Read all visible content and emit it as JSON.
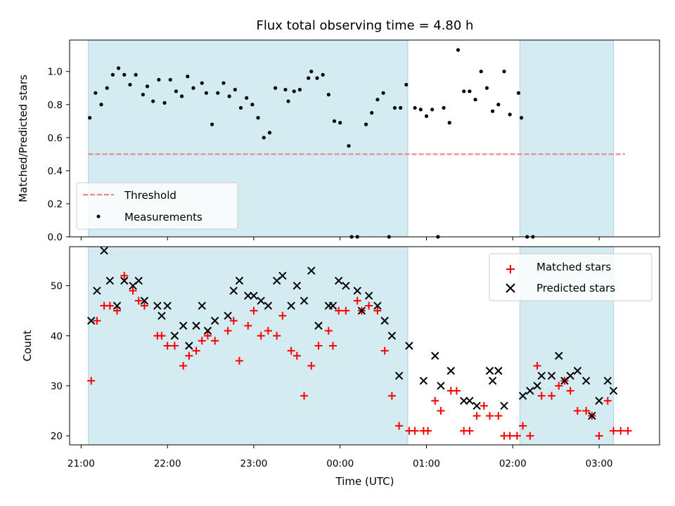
{
  "chart_data": [
    {
      "type": "scatter",
      "title": "Flux total observing time = 4.80 h",
      "xlabel": "",
      "ylabel": "Matched/Predicted stars",
      "x_ticks": [
        "21:00",
        "22:00",
        "23:00",
        "00:00",
        "01:00",
        "02:00",
        "03:00"
      ],
      "y_ticks": [
        "0.0",
        "0.2",
        "0.4",
        "0.6",
        "0.8",
        "1.0"
      ],
      "xlim": [
        "20:52",
        "03:42"
      ],
      "ylim": [
        0,
        1.19
      ],
      "grid": false,
      "legend_position": "lower-left",
      "shaded_spans": [
        [
          "21:05",
          "00:47"
        ],
        [
          "02:05",
          "03:10"
        ]
      ],
      "threshold": {
        "name": "Threshold",
        "value": 0.5,
        "x_range": [
          "21:05",
          "03:18"
        ],
        "color": "#f08080",
        "style": "dashed"
      },
      "series": [
        {
          "name": "Measurements",
          "color": "#000000",
          "marker": "dot",
          "points": [
            [
              "21:06",
              0.72
            ],
            [
              "21:10",
              0.87
            ],
            [
              "21:14",
              0.8
            ],
            [
              "21:18",
              0.9
            ],
            [
              "21:22",
              0.98
            ],
            [
              "21:26",
              1.02
            ],
            [
              "21:30",
              0.98
            ],
            [
              "21:34",
              0.92
            ],
            [
              "21:38",
              0.98
            ],
            [
              "21:43",
              0.86
            ],
            [
              "21:46",
              0.91
            ],
            [
              "21:50",
              0.82
            ],
            [
              "21:54",
              0.95
            ],
            [
              "21:58",
              0.81
            ],
            [
              "22:02",
              0.95
            ],
            [
              "22:06",
              0.88
            ],
            [
              "22:10",
              0.85
            ],
            [
              "22:14",
              0.97
            ],
            [
              "22:18",
              0.9
            ],
            [
              "22:24",
              0.93
            ],
            [
              "22:27",
              0.87
            ],
            [
              "22:31",
              0.68
            ],
            [
              "22:35",
              0.87
            ],
            [
              "22:39",
              0.93
            ],
            [
              "22:43",
              0.85
            ],
            [
              "22:47",
              0.89
            ],
            [
              "22:51",
              0.78
            ],
            [
              "22:55",
              0.84
            ],
            [
              "22:59",
              0.8
            ],
            [
              "23:03",
              0.72
            ],
            [
              "23:07",
              0.6
            ],
            [
              "23:11",
              0.63
            ],
            [
              "23:15",
              0.9
            ],
            [
              "23:22",
              0.89
            ],
            [
              "23:24",
              0.82
            ],
            [
              "23:28",
              0.88
            ],
            [
              "23:32",
              0.89
            ],
            [
              "23:38",
              0.96
            ],
            [
              "23:40",
              1.0
            ],
            [
              "23:44",
              0.96
            ],
            [
              "23:48",
              0.98
            ],
            [
              "23:52",
              0.86
            ],
            [
              "23:56",
              0.7
            ],
            [
              "00:00",
              0.69
            ],
            [
              "00:06",
              0.55
            ],
            [
              "00:08",
              0.0
            ],
            [
              "00:12",
              0.0
            ],
            [
              "00:18",
              0.68
            ],
            [
              "00:22",
              0.75
            ],
            [
              "00:26",
              0.83
            ],
            [
              "00:30",
              0.87
            ],
            [
              "00:34",
              0.0
            ],
            [
              "00:38",
              0.78
            ],
            [
              "00:42",
              0.78
            ],
            [
              "00:46",
              0.92
            ],
            [
              "00:52",
              0.78
            ],
            [
              "00:56",
              0.77
            ],
            [
              "01:00",
              0.73
            ],
            [
              "01:04",
              0.77
            ],
            [
              "01:08",
              0.0
            ],
            [
              "01:12",
              0.78
            ],
            [
              "01:16",
              0.69
            ],
            [
              "01:22",
              1.13
            ],
            [
              "01:26",
              0.88
            ],
            [
              "01:30",
              0.88
            ],
            [
              "01:34",
              0.83
            ],
            [
              "01:38",
              1.0
            ],
            [
              "01:42",
              0.9
            ],
            [
              "01:46",
              0.76
            ],
            [
              "01:50",
              0.8
            ],
            [
              "01:54",
              1.0
            ],
            [
              "01:58",
              0.74
            ],
            [
              "02:04",
              0.87
            ],
            [
              "02:06",
              0.72
            ],
            [
              "02:10",
              0.0
            ],
            [
              "02:14",
              0.0
            ]
          ]
        }
      ]
    },
    {
      "type": "scatter",
      "title": "",
      "xlabel": "Time (UTC)",
      "ylabel": "Count",
      "x_ticks": [
        "21:00",
        "22:00",
        "23:00",
        "00:00",
        "01:00",
        "02:00",
        "03:00"
      ],
      "y_ticks": [
        "20",
        "30",
        "40",
        "50"
      ],
      "xlim": [
        "20:52",
        "03:42"
      ],
      "ylim": [
        18.2,
        57.8
      ],
      "grid": false,
      "legend_position": "upper-right",
      "shaded_spans": [
        [
          "21:05",
          "00:47"
        ],
        [
          "02:05",
          "03:10"
        ]
      ],
      "series": [
        {
          "name": "Matched stars",
          "color": "#ff0000",
          "marker": "plus",
          "points": [
            [
              "21:07",
              31
            ],
            [
              "21:11",
              43
            ],
            [
              "21:16",
              46
            ],
            [
              "21:20",
              46
            ],
            [
              "21:25",
              45
            ],
            [
              "21:30",
              52
            ],
            [
              "21:36",
              49
            ],
            [
              "21:40",
              47
            ],
            [
              "21:44",
              46
            ],
            [
              "21:53",
              40
            ],
            [
              "21:56",
              40
            ],
            [
              "22:00",
              38
            ],
            [
              "22:05",
              38
            ],
            [
              "22:11",
              34
            ],
            [
              "22:15",
              36
            ],
            [
              "22:20",
              37
            ],
            [
              "22:24",
              39
            ],
            [
              "22:28",
              40
            ],
            [
              "22:33",
              39
            ],
            [
              "22:42",
              41
            ],
            [
              "22:46",
              43
            ],
            [
              "22:50",
              35
            ],
            [
              "22:56",
              42
            ],
            [
              "23:00",
              45
            ],
            [
              "23:05",
              40
            ],
            [
              "23:10",
              41
            ],
            [
              "23:16",
              40
            ],
            [
              "23:20",
              44
            ],
            [
              "23:26",
              37
            ],
            [
              "23:30",
              36
            ],
            [
              "23:35",
              28
            ],
            [
              "23:40",
              34
            ],
            [
              "23:45",
              38
            ],
            [
              "23:52",
              41
            ],
            [
              "23:55",
              38
            ],
            [
              "23:59",
              45
            ],
            [
              "00:04",
              45
            ],
            [
              "00:12",
              47
            ],
            [
              "00:15",
              45
            ],
            [
              "00:20",
              46
            ],
            [
              "00:26",
              45
            ],
            [
              "00:31",
              37
            ],
            [
              "00:36",
              28
            ],
            [
              "00:41",
              22
            ],
            [
              "00:48",
              21
            ],
            [
              "00:52",
              21
            ],
            [
              "00:58",
              21
            ],
            [
              "01:01",
              21
            ],
            [
              "01:06",
              27
            ],
            [
              "01:10",
              25
            ],
            [
              "01:17",
              29
            ],
            [
              "01:21",
              29
            ],
            [
              "01:26",
              21
            ],
            [
              "01:30",
              21
            ],
            [
              "01:35",
              24
            ],
            [
              "01:40",
              26
            ],
            [
              "01:44",
              24
            ],
            [
              "01:50",
              24
            ],
            [
              "01:54",
              20
            ],
            [
              "01:58",
              20
            ],
            [
              "02:03",
              20
            ],
            [
              "02:07",
              22
            ],
            [
              "02:12",
              20
            ],
            [
              "02:17",
              34
            ],
            [
              "02:20",
              28
            ],
            [
              "02:27",
              28
            ],
            [
              "02:32",
              30
            ],
            [
              "02:36",
              31
            ],
            [
              "02:40",
              29
            ],
            [
              "02:45",
              25
            ],
            [
              "02:51",
              25
            ],
            [
              "02:55",
              24
            ],
            [
              "03:00",
              20
            ],
            [
              "03:06",
              27
            ],
            [
              "03:10",
              21
            ],
            [
              "03:15",
              21
            ],
            [
              "03:20",
              21
            ]
          ]
        },
        {
          "name": "Predicted stars",
          "color": "#000000",
          "marker": "x",
          "points": [
            [
              "21:07",
              43
            ],
            [
              "21:11",
              49
            ],
            [
              "21:16",
              57
            ],
            [
              "21:20",
              51
            ],
            [
              "21:25",
              46
            ],
            [
              "21:30",
              51
            ],
            [
              "21:36",
              50
            ],
            [
              "21:40",
              51
            ],
            [
              "21:44",
              47
            ],
            [
              "21:53",
              46
            ],
            [
              "21:56",
              44
            ],
            [
              "22:00",
              46
            ],
            [
              "22:05",
              40
            ],
            [
              "22:11",
              42
            ],
            [
              "22:15",
              38
            ],
            [
              "22:20",
              42
            ],
            [
              "22:24",
              46
            ],
            [
              "22:28",
              41
            ],
            [
              "22:33",
              43
            ],
            [
              "22:42",
              44
            ],
            [
              "22:46",
              49
            ],
            [
              "22:50",
              51
            ],
            [
              "22:56",
              48
            ],
            [
              "23:00",
              48
            ],
            [
              "23:05",
              47
            ],
            [
              "23:10",
              46
            ],
            [
              "23:16",
              51
            ],
            [
              "23:20",
              52
            ],
            [
              "23:26",
              46
            ],
            [
              "23:30",
              50
            ],
            [
              "23:35",
              47
            ],
            [
              "23:40",
              53
            ],
            [
              "23:45",
              42
            ],
            [
              "23:52",
              46
            ],
            [
              "23:55",
              46
            ],
            [
              "23:59",
              51
            ],
            [
              "00:04",
              50
            ],
            [
              "00:12",
              49
            ],
            [
              "00:15",
              45
            ],
            [
              "00:20",
              48
            ],
            [
              "00:26",
              46
            ],
            [
              "00:31",
              43
            ],
            [
              "00:36",
              40
            ],
            [
              "00:41",
              32
            ],
            [
              "00:48",
              38
            ],
            [
              "00:58",
              31
            ],
            [
              "01:06",
              36
            ],
            [
              "01:10",
              30
            ],
            [
              "01:17",
              33
            ],
            [
              "01:26",
              27
            ],
            [
              "01:30",
              27
            ],
            [
              "01:35",
              26
            ],
            [
              "01:44",
              33
            ],
            [
              "01:46",
              31
            ],
            [
              "01:50",
              33
            ],
            [
              "01:54",
              26
            ],
            [
              "02:07",
              28
            ],
            [
              "02:12",
              29
            ],
            [
              "02:17",
              30
            ],
            [
              "02:20",
              32
            ],
            [
              "02:27",
              32
            ],
            [
              "02:32",
              36
            ],
            [
              "02:36",
              31
            ],
            [
              "02:40",
              32
            ],
            [
              "02:45",
              33
            ],
            [
              "02:51",
              31
            ],
            [
              "02:55",
              24
            ],
            [
              "03:00",
              27
            ],
            [
              "03:06",
              31
            ],
            [
              "03:10",
              29
            ]
          ]
        }
      ]
    }
  ],
  "colors": {
    "shade": "#d4ebf1",
    "shade_edge": "#a9d6e3",
    "threshold": "#f08080",
    "matched": "#ff0000",
    "predicted": "#000000",
    "measurement": "#000000"
  }
}
